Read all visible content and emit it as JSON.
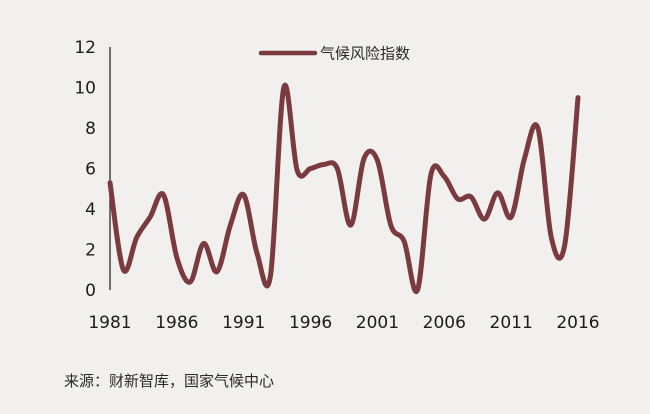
{
  "chart_data": {
    "type": "line",
    "title": "",
    "xlabel": "",
    "ylabel": "",
    "x": [
      1981,
      1982,
      1983,
      1984,
      1985,
      1986,
      1987,
      1988,
      1989,
      1990,
      1991,
      1992,
      1993,
      1994,
      1995,
      1996,
      1997,
      1998,
      1999,
      2000,
      2001,
      2002,
      2003,
      2004,
      2005,
      2006,
      2007,
      2008,
      2009,
      2010,
      2011,
      2012,
      2013,
      2014,
      2015,
      2016
    ],
    "series": [
      {
        "name": "气候风险指数",
        "color": "#7b3b3e",
        "values": [
          5.3,
          1.0,
          2.6,
          3.6,
          4.7,
          1.6,
          0.4,
          2.3,
          0.9,
          3.2,
          4.7,
          1.8,
          0.7,
          10.0,
          5.9,
          6.0,
          6.2,
          6.0,
          3.2,
          6.5,
          6.4,
          3.2,
          2.4,
          0.0,
          5.7,
          5.6,
          4.5,
          4.6,
          3.5,
          4.8,
          3.6,
          6.5,
          8.0,
          2.6,
          2.2,
          9.5
        ]
      }
    ],
    "xticks": [
      1981,
      1986,
      1991,
      1996,
      2001,
      2006,
      2011,
      2016
    ],
    "yticks": [
      0,
      2,
      4,
      6,
      8,
      10,
      12
    ],
    "xlim": [
      1981,
      2016
    ],
    "ylim": [
      0,
      12
    ],
    "grid": false,
    "legend_position": "top"
  },
  "source_note": "来源：财新智库，国家气候中心"
}
